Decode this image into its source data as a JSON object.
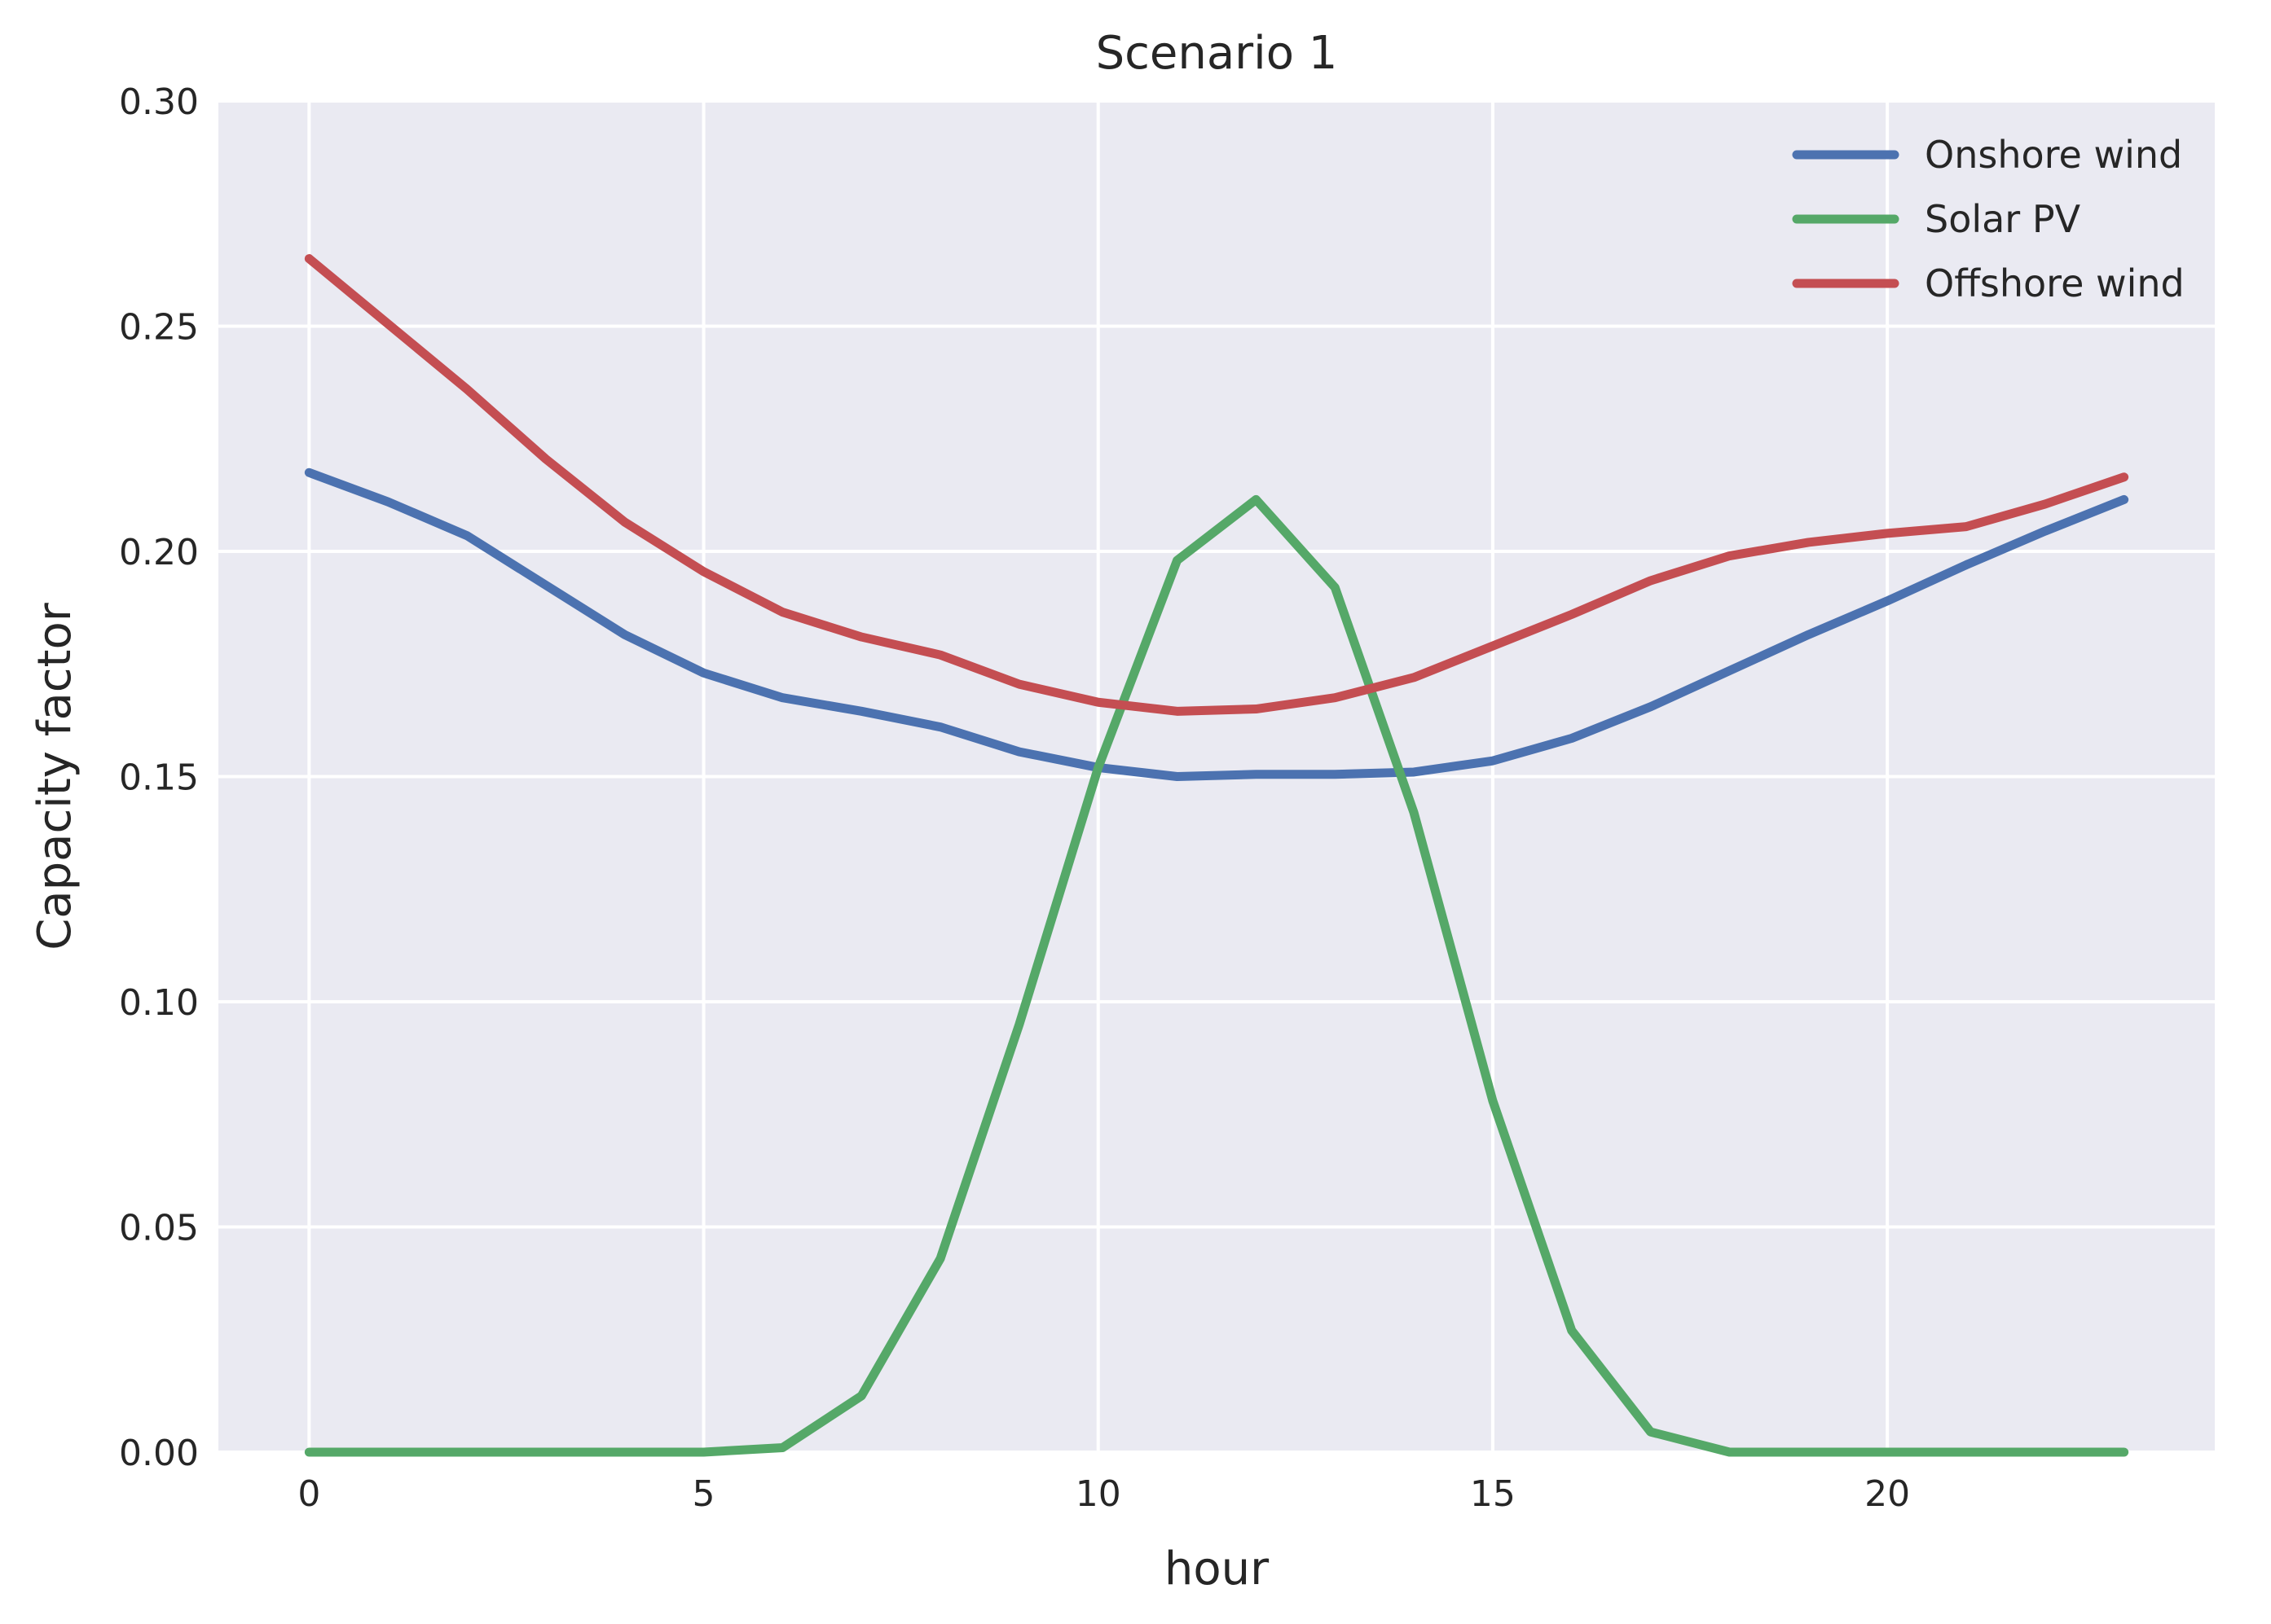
{
  "chart_data": {
    "type": "line",
    "title": "Scenario 1",
    "xlabel": "hour",
    "ylabel": "Capacity factor",
    "xlim": [
      -1.15,
      24.15
    ],
    "ylim": [
      0.0,
      0.3
    ],
    "x_ticks": [
      0,
      5,
      10,
      15,
      20
    ],
    "y_ticks": [
      0.0,
      0.05,
      0.1,
      0.15,
      0.2,
      0.25,
      0.3
    ],
    "x_tick_labels": [
      "0",
      "5",
      "10",
      "15",
      "20"
    ],
    "y_tick_labels": [
      "0.00",
      "0.05",
      "0.10",
      "0.15",
      "0.20",
      "0.25",
      "0.30"
    ],
    "grid": true,
    "legend_position": "top-right",
    "x": [
      0,
      1,
      2,
      3,
      4,
      5,
      6,
      7,
      8,
      9,
      10,
      11,
      12,
      13,
      14,
      15,
      16,
      17,
      18,
      19,
      20,
      21,
      22,
      23
    ],
    "series": [
      {
        "name": "Onshore wind",
        "color": "#4c72b0",
        "values": [
          0.2175,
          0.211,
          0.2035,
          0.1925,
          0.1815,
          0.173,
          0.1675,
          0.1645,
          0.161,
          0.1555,
          0.152,
          0.15,
          0.1505,
          0.1505,
          0.151,
          0.1535,
          0.1585,
          0.1655,
          0.1735,
          0.1815,
          0.189,
          0.197,
          0.2045,
          0.2115
        ]
      },
      {
        "name": "Solar PV",
        "color": "#55a868",
        "values": [
          0.0,
          0.0,
          0.0,
          0.0,
          0.0,
          0.0,
          0.001,
          0.0125,
          0.043,
          0.095,
          0.152,
          0.198,
          0.2115,
          0.192,
          0.142,
          0.078,
          0.027,
          0.0045,
          0.0,
          0.0,
          0.0,
          0.0,
          0.0,
          0.0
        ]
      },
      {
        "name": "Offshore wind",
        "color": "#c44e52",
        "values": [
          0.265,
          0.2505,
          0.236,
          0.2205,
          0.2065,
          0.1955,
          0.1865,
          0.181,
          0.177,
          0.1705,
          0.1665,
          0.1645,
          0.165,
          0.1675,
          0.172,
          0.179,
          0.186,
          0.1935,
          0.199,
          0.202,
          0.204,
          0.2055,
          0.2105,
          0.2165
        ]
      }
    ]
  },
  "style": {
    "plot_background": "#eaeaf2",
    "grid_color": "#ffffff",
    "text_color": "#262626"
  }
}
